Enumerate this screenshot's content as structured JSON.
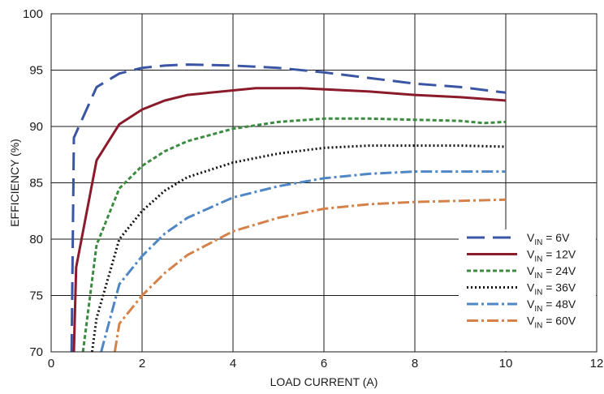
{
  "chart_data": {
    "type": "line",
    "xlabel": "LOAD CURRENT (A)",
    "ylabel": "EFFICIENCY (%)",
    "xlim": [
      0,
      12
    ],
    "ylim": [
      70,
      100
    ],
    "xticks": [
      "0",
      "2",
      "4",
      "6",
      "8",
      "10",
      "12"
    ],
    "yticks": [
      "70",
      "75",
      "80",
      "85",
      "90",
      "95",
      "100"
    ],
    "grid": true,
    "legend_position": "bottom-right",
    "series": [
      {
        "name": "V_IN = 6V",
        "label_sub": "IN",
        "label_value": " = 6V",
        "color": "#3a55a4",
        "dash": "22,10",
        "width": 3,
        "x": [
          0.45,
          0.5,
          1.0,
          1.5,
          2.0,
          2.5,
          3.0,
          4.0,
          5.0,
          6.0,
          7.0,
          8.0,
          9.0,
          10.0
        ],
        "y": [
          70.0,
          89.0,
          93.5,
          94.7,
          95.2,
          95.4,
          95.5,
          95.4,
          95.2,
          94.8,
          94.3,
          93.8,
          93.5,
          93.0
        ]
      },
      {
        "name": "V_IN = 12V",
        "label_sub": "IN",
        "label_value": " = 12V",
        "color": "#8b1a2b",
        "dash": "",
        "width": 3,
        "x": [
          0.5,
          0.55,
          1.0,
          1.5,
          2.0,
          2.5,
          3.0,
          4.0,
          4.5,
          5.5,
          6.0,
          7.0,
          8.0,
          9.0,
          10.0
        ],
        "y": [
          70.0,
          77.5,
          87.0,
          90.2,
          91.5,
          92.3,
          92.8,
          93.2,
          93.4,
          93.4,
          93.3,
          93.1,
          92.8,
          92.6,
          92.3
        ]
      },
      {
        "name": "V_IN = 24V",
        "label_sub": "IN",
        "label_value": " = 24V",
        "color": "#3b8c40",
        "dash": "5,3",
        "width": 3,
        "x": [
          0.7,
          1.0,
          1.5,
          2.0,
          2.5,
          3.0,
          4.0,
          5.0,
          6.0,
          7.0,
          8.0,
          9.0,
          9.5,
          10.0
        ],
        "y": [
          70.0,
          79.5,
          84.5,
          86.5,
          87.8,
          88.7,
          89.8,
          90.4,
          90.7,
          90.7,
          90.6,
          90.5,
          90.3,
          90.4
        ]
      },
      {
        "name": "V_IN = 36V",
        "label_sub": "IN",
        "label_value": " = 36V",
        "color": "#111111",
        "dash": "2,3",
        "width": 3,
        "x": [
          0.9,
          1.0,
          1.5,
          2.0,
          2.5,
          3.0,
          4.0,
          5.0,
          6.0,
          7.0,
          8.0,
          9.0,
          10.0
        ],
        "y": [
          70.0,
          73.0,
          80.0,
          82.5,
          84.3,
          85.5,
          86.8,
          87.6,
          88.1,
          88.3,
          88.3,
          88.3,
          88.2
        ]
      },
      {
        "name": "V_IN = 48V",
        "label_sub": "IN",
        "label_value": " = 48V",
        "color": "#4f86c6",
        "dash": "14,4,3,4",
        "width": 3,
        "x": [
          1.1,
          1.5,
          2.0,
          2.5,
          3.0,
          4.0,
          5.0,
          6.0,
          7.0,
          8.0,
          9.0,
          10.0
        ],
        "y": [
          70.0,
          76.0,
          78.5,
          80.5,
          81.9,
          83.7,
          84.7,
          85.4,
          85.8,
          86.0,
          86.0,
          86.0
        ]
      },
      {
        "name": "V_IN = 60V",
        "label_sub": "IN",
        "label_value": " = 60V",
        "color": "#d4824a",
        "dash": "14,4,3,4",
        "width": 3,
        "x": [
          1.4,
          1.5,
          2.0,
          2.5,
          3.0,
          4.0,
          5.0,
          6.0,
          7.0,
          8.0,
          9.0,
          10.0
        ],
        "y": [
          70.0,
          72.5,
          75.0,
          77.0,
          78.6,
          80.7,
          81.9,
          82.7,
          83.1,
          83.3,
          83.4,
          83.5
        ]
      }
    ]
  }
}
